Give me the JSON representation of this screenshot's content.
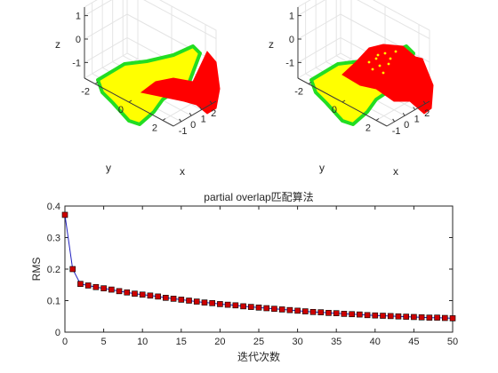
{
  "chart_data": [
    {
      "type": "surface3d",
      "xlabel": "x",
      "ylabel": "y",
      "zlabel": "z",
      "xticks": [
        "-1",
        "0",
        "1",
        "2"
      ],
      "yticks": [
        "-2",
        "0",
        "2"
      ],
      "zticks": [
        "-1",
        "0",
        "1"
      ],
      "surfaces": [
        {
          "color": "#ffff00",
          "edge_color": "#22dd22"
        },
        {
          "color": "#ff0000"
        }
      ]
    },
    {
      "type": "surface3d",
      "xlabel": "x",
      "ylabel": "y",
      "zlabel": "z",
      "xticks": [
        "-1",
        "0",
        "1",
        "2"
      ],
      "yticks": [
        "-2",
        "0",
        "2"
      ],
      "zticks": [
        "-1",
        "0",
        "1"
      ],
      "surfaces": [
        {
          "color": "#ffff00",
          "edge_color": "#22dd22"
        },
        {
          "color": "#ff0000"
        }
      ]
    },
    {
      "type": "line",
      "title": "partial overlap匹配算法",
      "xlabel": "迭代次数",
      "ylabel": "RMS",
      "xlim": [
        0,
        50
      ],
      "ylim": [
        0,
        0.4
      ],
      "xticks": [
        0,
        5,
        10,
        15,
        20,
        25,
        30,
        35,
        40,
        45,
        50
      ],
      "yticks": [
        0,
        0.1,
        0.2,
        0.3,
        0.4
      ],
      "ytick_labels": [
        "0",
        "0.1",
        "0.2",
        "0.3",
        "0.4"
      ],
      "line_color": "#1f1fbf",
      "marker_color": "#cc0000",
      "x": [
        0,
        1,
        2,
        3,
        4,
        5,
        6,
        7,
        8,
        9,
        10,
        11,
        12,
        13,
        14,
        15,
        16,
        17,
        18,
        19,
        20,
        21,
        22,
        23,
        24,
        25,
        26,
        27,
        28,
        29,
        30,
        31,
        32,
        33,
        34,
        35,
        36,
        37,
        38,
        39,
        40,
        41,
        42,
        43,
        44,
        45,
        46,
        47,
        48,
        49,
        50
      ],
      "y": [
        0.372,
        0.2,
        0.153,
        0.148,
        0.143,
        0.139,
        0.135,
        0.13,
        0.126,
        0.122,
        0.119,
        0.116,
        0.113,
        0.109,
        0.106,
        0.103,
        0.1,
        0.097,
        0.094,
        0.092,
        0.089,
        0.087,
        0.085,
        0.082,
        0.08,
        0.078,
        0.076,
        0.074,
        0.072,
        0.07,
        0.068,
        0.066,
        0.064,
        0.063,
        0.061,
        0.06,
        0.058,
        0.057,
        0.056,
        0.054,
        0.053,
        0.052,
        0.051,
        0.05,
        0.049,
        0.048,
        0.047,
        0.046,
        0.046,
        0.045,
        0.044
      ]
    }
  ]
}
